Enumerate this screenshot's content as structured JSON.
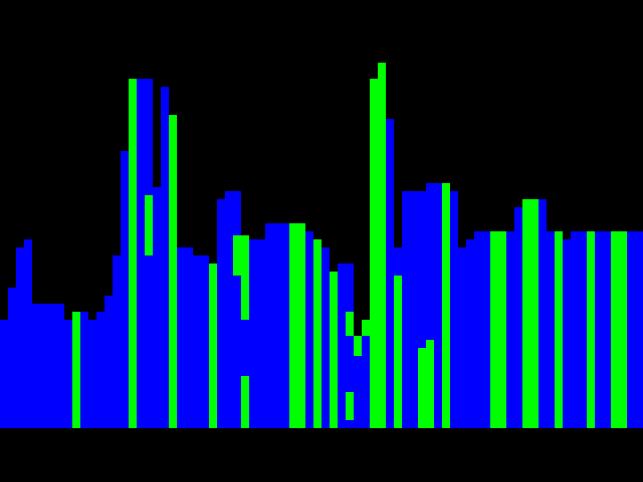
{
  "scene": {
    "background": "#000000",
    "colors": {
      "blue": "#0000ff",
      "green": "#00ff00"
    },
    "skyline_columns": [
      {
        "color": "blue",
        "height": 135
      },
      {
        "color": "blue",
        "height": 175
      },
      {
        "color": "blue",
        "height": 225
      },
      {
        "color": "blue",
        "height": 235
      },
      {
        "color": "blue",
        "height": 155
      },
      {
        "color": "blue",
        "height": 155
      },
      {
        "color": "blue",
        "height": 155
      },
      {
        "color": "blue",
        "height": 155
      },
      {
        "color": "blue",
        "height": 135
      },
      {
        "color": "green",
        "height": 145
      },
      {
        "color": "blue",
        "height": 145
      },
      {
        "color": "blue",
        "height": 135
      },
      {
        "color": "blue",
        "height": 145
      },
      {
        "color": "blue",
        "height": 165
      },
      {
        "color": "blue",
        "height": 215
      },
      {
        "color": "blue",
        "height": 345
      },
      {
        "color": "green",
        "height": 435
      },
      {
        "color": "blue",
        "height": 435
      },
      {
        "color": "blue",
        "height": 435
      },
      {
        "color": "blue",
        "height": 300
      },
      {
        "color": "blue",
        "height": 425
      },
      {
        "color": "green",
        "height": 390
      },
      {
        "color": "blue",
        "height": 225
      },
      {
        "color": "blue",
        "height": 225
      },
      {
        "color": "blue",
        "height": 215
      },
      {
        "color": "blue",
        "height": 215
      },
      {
        "color": "green",
        "height": 205
      },
      {
        "color": "blue",
        "height": 285
      },
      {
        "color": "blue",
        "height": 295
      },
      {
        "color": "blue",
        "height": 295
      },
      {
        "color": "green",
        "height": 240
      },
      {
        "color": "blue",
        "height": 235
      },
      {
        "color": "blue",
        "height": 235
      },
      {
        "color": "blue",
        "height": 255
      },
      {
        "color": "blue",
        "height": 255
      },
      {
        "color": "blue",
        "height": 255
      },
      {
        "color": "green",
        "height": 255
      },
      {
        "color": "green",
        "height": 255
      },
      {
        "color": "blue",
        "height": 245
      },
      {
        "color": "green",
        "height": 235
      },
      {
        "color": "blue",
        "height": 225
      },
      {
        "color": "green",
        "height": 195
      },
      {
        "color": "blue",
        "height": 205
      },
      {
        "color": "blue",
        "height": 205
      },
      {
        "color": "green",
        "height": 115
      },
      {
        "color": "blue",
        "height": 135
      },
      {
        "color": "green",
        "height": 435
      },
      {
        "color": "green",
        "height": 455
      },
      {
        "color": "blue",
        "height": 385
      },
      {
        "color": "green",
        "height": 225
      },
      {
        "color": "blue",
        "height": 295
      },
      {
        "color": "blue",
        "height": 295
      },
      {
        "color": "green",
        "height": 295
      },
      {
        "color": "blue",
        "height": 305
      },
      {
        "color": "blue",
        "height": 305
      },
      {
        "color": "green",
        "height": 305
      },
      {
        "color": "blue",
        "height": 295
      },
      {
        "color": "blue",
        "height": 225
      },
      {
        "color": "blue",
        "height": 235
      },
      {
        "color": "blue",
        "height": 245
      },
      {
        "color": "blue",
        "height": 245
      },
      {
        "color": "green",
        "height": 245
      },
      {
        "color": "green",
        "height": 245
      },
      {
        "color": "blue",
        "height": 245
      },
      {
        "color": "blue",
        "height": 275
      },
      {
        "color": "green",
        "height": 285
      },
      {
        "color": "green",
        "height": 285
      },
      {
        "color": "blue",
        "height": 285
      },
      {
        "color": "blue",
        "height": 245
      },
      {
        "color": "green",
        "height": 245
      },
      {
        "color": "blue",
        "height": 235
      },
      {
        "color": "blue",
        "height": 245
      },
      {
        "color": "blue",
        "height": 245
      },
      {
        "color": "green",
        "height": 245
      },
      {
        "color": "blue",
        "height": 245
      },
      {
        "color": "blue",
        "height": 245
      },
      {
        "color": "green",
        "height": 245
      },
      {
        "color": "green",
        "height": 245
      },
      {
        "color": "blue",
        "height": 245
      },
      {
        "color": "blue",
        "height": 245
      }
    ],
    "overlay_blocks": [
      {
        "color": "blue",
        "col": 15,
        "top_offset": 90,
        "span": 45
      },
      {
        "color": "blue",
        "col": 17,
        "top_offset": 0,
        "span": 145
      },
      {
        "color": "green",
        "col": 18,
        "top_offset": 145,
        "span": 75
      },
      {
        "color": "blue",
        "col": 20,
        "top_offset": 10,
        "span": 45
      },
      {
        "color": "green",
        "col": 21,
        "top_offset": 0,
        "span": 90
      },
      {
        "color": "green",
        "col": 29,
        "top_offset": 55,
        "span": 50
      },
      {
        "color": "blue",
        "col": 30,
        "top_offset": 105,
        "span": 70
      },
      {
        "color": "blue",
        "col": 43,
        "top_offset": 0,
        "span": 45
      },
      {
        "color": "blue",
        "col": 43,
        "top_offset": 90,
        "span": 30
      },
      {
        "color": "green",
        "col": 43,
        "top_offset": 60,
        "span": 30
      },
      {
        "color": "green",
        "col": 43,
        "top_offset": 160,
        "span": 35
      },
      {
        "color": "blue",
        "col": 44,
        "top_offset": 25,
        "span": 100
      },
      {
        "color": "green",
        "col": 45,
        "top_offset": 0,
        "span": 20
      },
      {
        "color": "blue",
        "col": 49,
        "top_offset": 0,
        "span": 35
      },
      {
        "color": "blue",
        "col": 52,
        "top_offset": 0,
        "span": 195
      },
      {
        "color": "green",
        "col": 53,
        "top_offset": 195,
        "span": 110
      },
      {
        "color": "blue",
        "col": 54,
        "top_offset": 0,
        "span": 45
      },
      {
        "color": "green",
        "col": 65,
        "top_offset": 0,
        "span": 10
      },
      {
        "color": "blue",
        "col": 64,
        "top_offset": 0,
        "span": 25
      }
    ]
  }
}
